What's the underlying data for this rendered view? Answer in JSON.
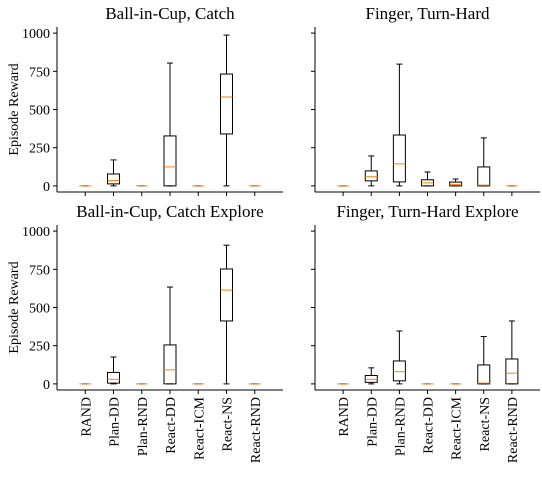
{
  "chart_data": [
    {
      "type": "box",
      "title": "Ball-in-Cup, Catch",
      "ylabel": "Episode Reward",
      "ylim": [
        -40,
        1040
      ],
      "yticks": [
        0,
        250,
        500,
        750,
        1000
      ],
      "ytick_labels": true,
      "color": "#000000",
      "median_color": "#ff7f0e",
      "boxes": [
        {
          "whislo": 0,
          "q1": 0,
          "med": 0,
          "q3": 0,
          "whishi": 0
        },
        {
          "whislo": 0,
          "q1": 13,
          "med": 35,
          "q3": 78,
          "whishi": 170
        },
        {
          "whislo": 0,
          "q1": 0,
          "med": 0,
          "q3": 0,
          "whishi": 0
        },
        {
          "whislo": 0,
          "q1": 0,
          "med": 124,
          "q3": 327,
          "whishi": 804
        },
        {
          "whislo": 0,
          "q1": 0,
          "med": 0,
          "q3": 0,
          "whishi": 0
        },
        {
          "whislo": 0,
          "q1": 340,
          "med": 582,
          "q3": 732,
          "whishi": 987
        },
        {
          "whislo": 0,
          "q1": 0,
          "med": 0,
          "q3": 0,
          "whishi": 0
        }
      ]
    },
    {
      "type": "box",
      "title": "Finger, Turn-Hard",
      "ylim": [
        -40,
        1040
      ],
      "yticks": [
        0,
        250,
        500,
        750,
        1000
      ],
      "ytick_labels": false,
      "color": "#000000",
      "median_color": "#ff7f0e",
      "boxes": [
        {
          "whislo": 0,
          "q1": 0,
          "med": 0,
          "q3": 0,
          "whishi": 0
        },
        {
          "whislo": 0,
          "q1": 33,
          "med": 60,
          "q3": 98,
          "whishi": 196
        },
        {
          "whislo": 0,
          "q1": 26,
          "med": 144,
          "q3": 333,
          "whishi": 797
        },
        {
          "whislo": 0,
          "q1": 0,
          "med": 20,
          "q3": 40,
          "whishi": 91
        },
        {
          "whislo": 0,
          "q1": 0,
          "med": 10,
          "q3": 25,
          "whishi": 45
        },
        {
          "whislo": 0,
          "q1": 0,
          "med": 5,
          "q3": 124,
          "whishi": 314
        },
        {
          "whislo": 0,
          "q1": 0,
          "med": 0,
          "q3": 0,
          "whishi": 0
        }
      ]
    },
    {
      "type": "box",
      "title": "Ball-in-Cup, Catch Explore",
      "ylabel": "Episode Reward",
      "ylim": [
        -40,
        1040
      ],
      "yticks": [
        0,
        250,
        500,
        750,
        1000
      ],
      "ytick_labels": true,
      "color": "#000000",
      "median_color": "#ff7f0e",
      "categories": [
        "RAND",
        "Plan-DD",
        "Plan-RND",
        "React-DD",
        "React-ICM",
        "React-NS",
        "React-RND"
      ],
      "boxes": [
        {
          "whislo": 0,
          "q1": 0,
          "med": 0,
          "q3": 0,
          "whishi": 0
        },
        {
          "whislo": 0,
          "q1": 5,
          "med": 30,
          "q3": 75,
          "whishi": 176
        },
        {
          "whislo": 0,
          "q1": 0,
          "med": 0,
          "q3": 0,
          "whishi": 0
        },
        {
          "whislo": 0,
          "q1": 0,
          "med": 92,
          "q3": 255,
          "whishi": 634
        },
        {
          "whislo": 0,
          "q1": 0,
          "med": 0,
          "q3": 0,
          "whishi": 0
        },
        {
          "whislo": 0,
          "q1": 412,
          "med": 614,
          "q3": 752,
          "whishi": 908
        },
        {
          "whislo": 0,
          "q1": 0,
          "med": 0,
          "q3": 0,
          "whishi": 0
        }
      ]
    },
    {
      "type": "box",
      "title": "Finger, Turn-Hard Explore",
      "ylim": [
        -40,
        1040
      ],
      "yticks": [
        0,
        250,
        500,
        750,
        1000
      ],
      "ytick_labels": false,
      "color": "#000000",
      "median_color": "#ff7f0e",
      "categories": [
        "RAND",
        "Plan-DD",
        "Plan-RND",
        "React-DD",
        "React-ICM",
        "React-NS",
        "React-RND"
      ],
      "boxes": [
        {
          "whislo": 0,
          "q1": 0,
          "med": 0,
          "q3": 0,
          "whishi": 0
        },
        {
          "whislo": 0,
          "q1": 10,
          "med": 30,
          "q3": 55,
          "whishi": 105
        },
        {
          "whislo": 0,
          "q1": 20,
          "med": 80,
          "q3": 150,
          "whishi": 346
        },
        {
          "whislo": 0,
          "q1": 0,
          "med": 0,
          "q3": 0,
          "whishi": 0
        },
        {
          "whislo": 0,
          "q1": 0,
          "med": 0,
          "q3": 0,
          "whishi": 0
        },
        {
          "whislo": 0,
          "q1": 0,
          "med": 5,
          "q3": 124,
          "whishi": 310
        },
        {
          "whislo": 0,
          "q1": 0,
          "med": 70,
          "q3": 163,
          "whishi": 412
        }
      ]
    }
  ]
}
